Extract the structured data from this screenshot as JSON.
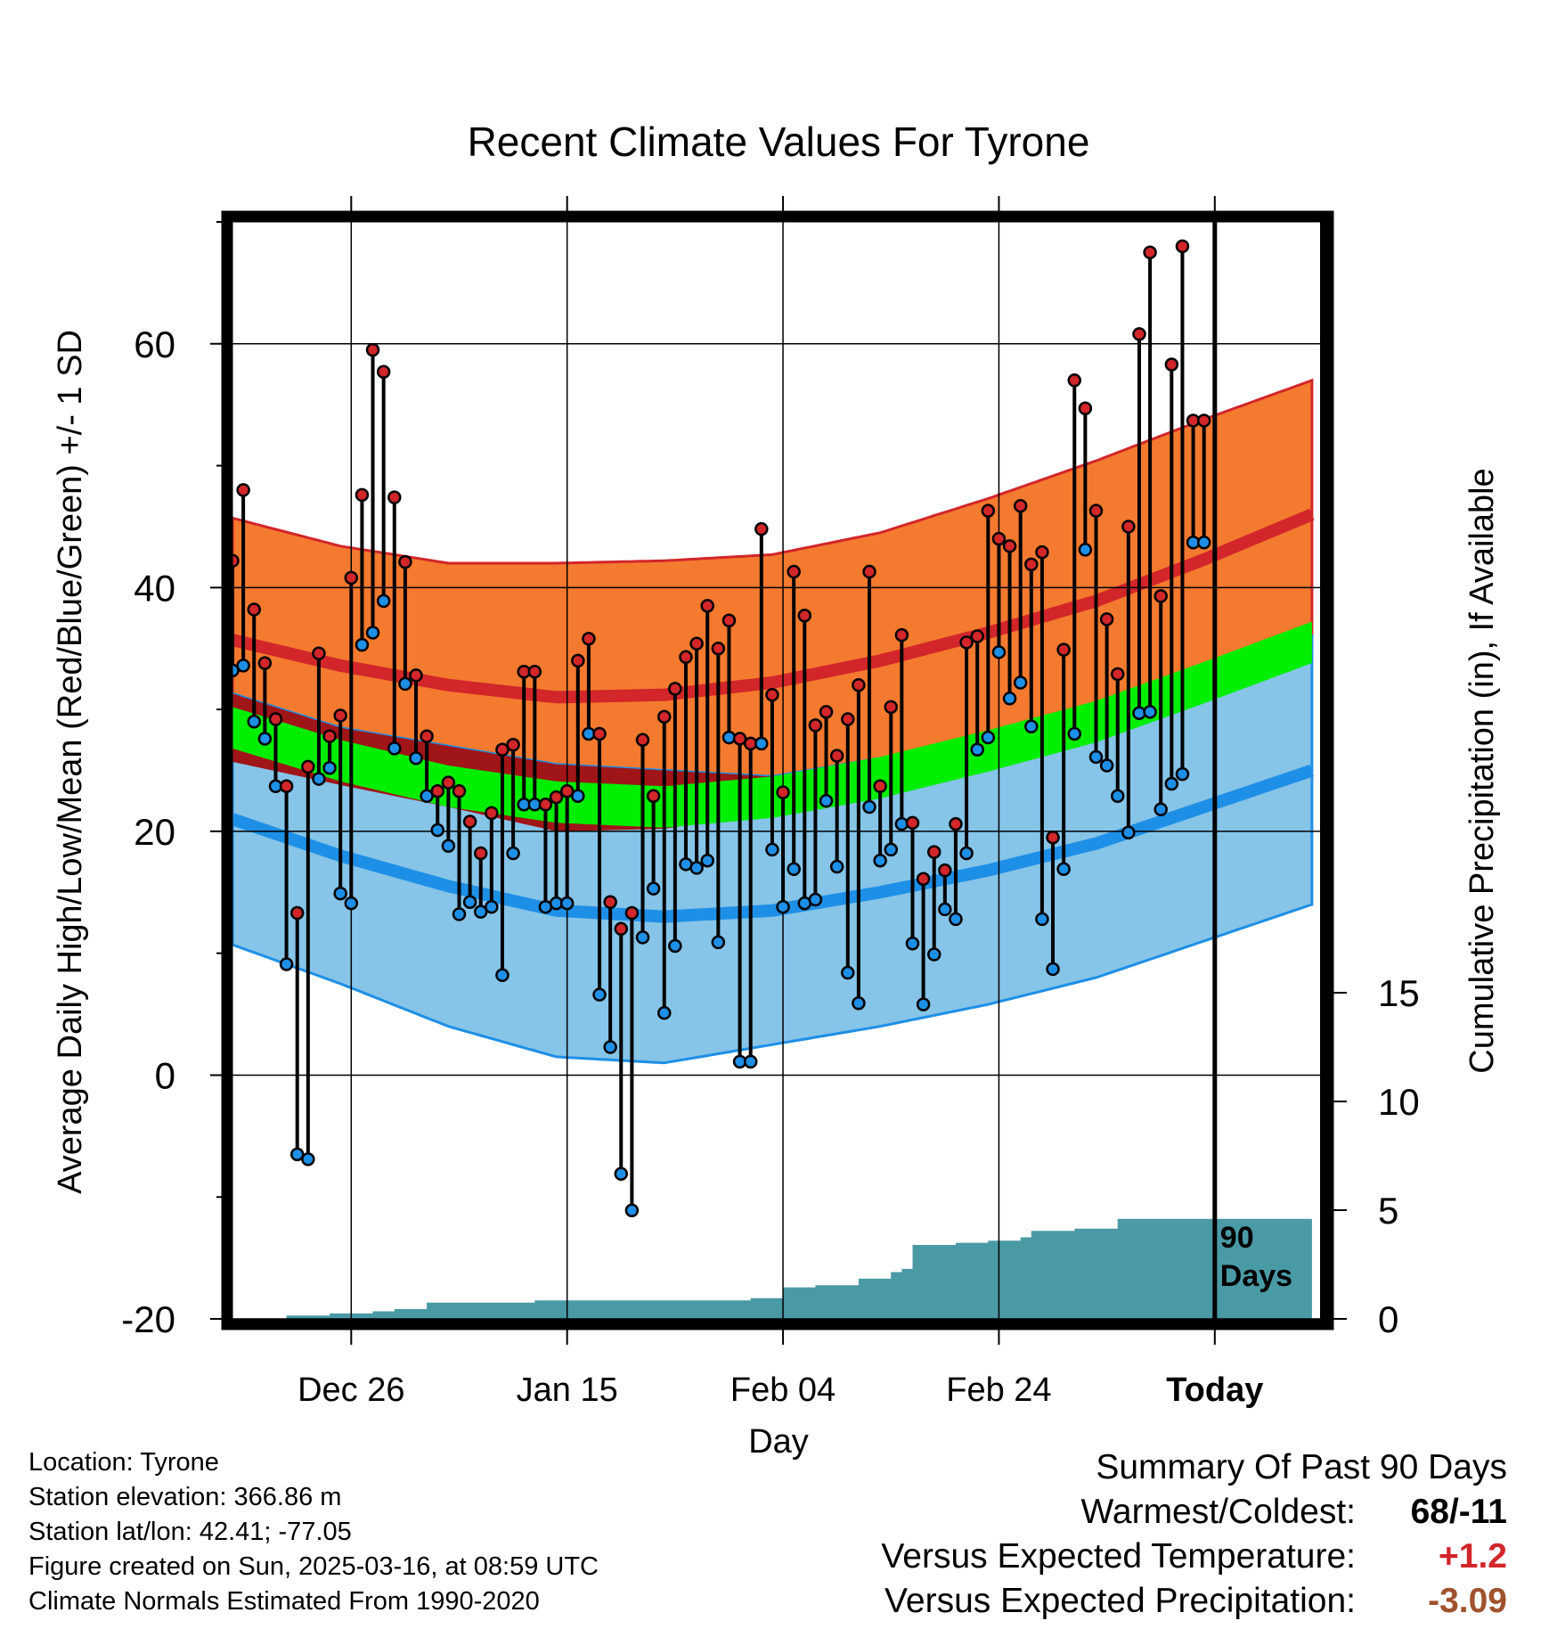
{
  "chart_data": {
    "type": "line",
    "title": "Recent Climate Values For Tyrone",
    "xlabel": "Day",
    "ylabel": "Average Daily High/Low/Mean (Red/Blue/Green) +/- 1 SD",
    "y2label": "Cumulative Precipitation (in), If Available",
    "x_tick_labels": [
      "Dec 26",
      "Jan 15",
      "Feb 04",
      "Feb 24",
      "Today"
    ],
    "x_tick_days": [
      11,
      31,
      51,
      71,
      91
    ],
    "xlim": [
      0,
      101
    ],
    "ylim": [
      -20,
      70
    ],
    "y_ticks": [
      -20,
      0,
      20,
      40,
      60
    ],
    "y2_ticks": [
      0,
      5,
      10,
      15
    ],
    "y2lim": [
      0,
      20
    ],
    "grid": true,
    "today_day": 91,
    "today_label": [
      "90",
      "Days"
    ],
    "colors": {
      "high_band": "#f47a2f",
      "high_mean": "#d2262a",
      "low_band": "#86c4e8",
      "low_mean": "#1e8fe6",
      "mean_band": "#00ee00",
      "overlap": "#a01518",
      "precip": "#4a9aa6",
      "high_dot": "#d2262a",
      "low_dot": "#1e8fe6"
    },
    "normals": {
      "days": [
        0,
        10,
        20,
        30,
        40,
        50,
        60,
        70,
        80,
        90,
        100
      ],
      "normal_high": [
        35.7,
        33.6,
        32.0,
        31.0,
        31.2,
        32.2,
        34.0,
        36.3,
        38.9,
        42.3,
        46.0
      ],
      "normal_high_sd": [
        10.0,
        9.8,
        10.0,
        11.0,
        11.0,
        10.5,
        10.5,
        11.0,
        11.5,
        11.5,
        11.0
      ],
      "normal_low": [
        21.0,
        18.0,
        15.5,
        13.5,
        13.0,
        13.5,
        15.0,
        16.8,
        19.0,
        22.0,
        25.0
      ],
      "normal_low_sd": [
        10.3,
        10.5,
        11.5,
        12.0,
        12.0,
        11.0,
        11.0,
        11.0,
        11.0,
        11.0,
        11.0
      ],
      "normal_mean": [
        28.5,
        25.8,
        23.7,
        22.4,
        22.0,
        22.8,
        24.4,
        26.6,
        29.0,
        32.2,
        35.5
      ],
      "mean_band_width": 1.7
    },
    "series": [
      {
        "name": "High",
        "days": [
          0,
          1,
          2,
          3,
          4,
          5,
          6,
          7,
          8,
          9,
          10,
          11,
          12,
          13,
          14,
          15,
          16,
          17,
          18,
          19,
          20,
          21,
          22,
          23,
          24,
          25,
          26,
          27,
          28,
          29,
          30,
          31,
          32,
          33,
          34,
          35,
          36,
          37,
          38,
          39,
          40,
          41,
          42,
          43,
          44,
          45,
          46,
          47,
          48,
          49,
          50,
          51,
          52,
          53,
          54,
          55,
          56,
          57,
          58,
          59,
          60,
          61,
          62,
          63,
          64,
          65,
          66,
          67,
          68,
          69,
          70,
          71,
          72,
          73,
          74,
          75,
          76,
          77,
          78,
          79,
          80,
          81,
          82,
          83,
          84,
          85,
          86,
          87,
          88,
          89,
          90
        ],
        "values": [
          42.2,
          48.0,
          38.2,
          33.8,
          29.2,
          23.7,
          13.3,
          25.3,
          34.6,
          27.8,
          29.5,
          40.8,
          47.6,
          59.5,
          57.7,
          47.4,
          42.1,
          32.8,
          27.8,
          23.3,
          24.0,
          23.3,
          20.8,
          18.2,
          21.5,
          26.7,
          27.1,
          33.1,
          33.1,
          22.2,
          22.8,
          23.3,
          34.0,
          35.8,
          28.0,
          14.2,
          12.0,
          13.3,
          27.5,
          22.9,
          29.4,
          31.7,
          34.3,
          35.4,
          38.5,
          35.0,
          37.3,
          27.6,
          27.2,
          44.8,
          31.2,
          23.2,
          41.3,
          37.7,
          28.7,
          29.8,
          26.2,
          29.2,
          32.0,
          41.3,
          23.7,
          30.2,
          36.1,
          20.7,
          16.1,
          18.3,
          16.8,
          20.6,
          35.5,
          36.0,
          46.3,
          44.0,
          43.4,
          46.7,
          41.9,
          42.9,
          19.5,
          34.9,
          57.0,
          54.7,
          46.3,
          37.4,
          32.9,
          45.0,
          60.8,
          67.5,
          39.3,
          58.3,
          68.0,
          53.7,
          53.7
        ]
      },
      {
        "name": "Low",
        "days": [
          0,
          1,
          2,
          3,
          4,
          5,
          6,
          7,
          8,
          9,
          10,
          11,
          12,
          13,
          14,
          15,
          16,
          17,
          18,
          19,
          20,
          21,
          22,
          23,
          24,
          25,
          26,
          27,
          28,
          29,
          30,
          31,
          32,
          33,
          34,
          35,
          36,
          37,
          38,
          39,
          40,
          41,
          42,
          43,
          44,
          45,
          46,
          47,
          48,
          49,
          50,
          51,
          52,
          53,
          54,
          55,
          56,
          57,
          58,
          59,
          60,
          61,
          62,
          63,
          64,
          65,
          66,
          67,
          68,
          69,
          70,
          71,
          72,
          73,
          74,
          75,
          76,
          77,
          78,
          79,
          80,
          81,
          82,
          83,
          84,
          85,
          86,
          87,
          88,
          89,
          90
        ],
        "values": [
          33.2,
          33.6,
          29.0,
          27.6,
          23.7,
          9.1,
          -6.5,
          -6.9,
          24.3,
          25.2,
          14.9,
          14.1,
          35.3,
          36.3,
          38.9,
          26.8,
          32.1,
          26.0,
          22.9,
          20.1,
          18.8,
          13.2,
          14.2,
          13.4,
          13.8,
          8.2,
          18.2,
          22.2,
          22.2,
          13.8,
          14.1,
          14.1,
          22.9,
          28.0,
          6.6,
          2.3,
          -8.1,
          -11.1,
          11.3,
          15.3,
          5.1,
          10.6,
          17.3,
          17.0,
          17.6,
          10.9,
          27.7,
          1.1,
          1.1,
          27.2,
          18.5,
          13.8,
          16.9,
          14.1,
          14.4,
          22.5,
          17.1,
          8.4,
          5.9,
          22.0,
          17.6,
          18.5,
          20.6,
          10.8,
          5.8,
          9.9,
          13.6,
          12.8,
          18.2,
          26.7,
          27.7,
          34.7,
          30.9,
          32.2,
          28.6,
          12.8,
          8.7,
          16.9,
          28.0,
          43.1,
          26.1,
          25.4,
          22.9,
          19.9,
          29.7,
          29.8,
          21.8,
          23.9,
          24.7,
          43.7,
          43.7
        ]
      }
    ],
    "precip": {
      "days": [
        0,
        5,
        9,
        13,
        15,
        18,
        28,
        48,
        51,
        54,
        58,
        61,
        62,
        63,
        67,
        70,
        73,
        74,
        78,
        82,
        86,
        90,
        100
      ],
      "values": [
        0,
        0.15,
        0.25,
        0.35,
        0.45,
        0.75,
        0.85,
        0.95,
        1.45,
        1.55,
        1.85,
        2.15,
        2.3,
        3.4,
        3.5,
        3.6,
        3.75,
        4.05,
        4.15,
        4.6,
        4.6,
        4.6,
        4.6
      ]
    }
  },
  "footer": {
    "lines": [
      "Location: Tyrone",
      "Station elevation: 366.86 m",
      "Station lat/lon: 42.41; -77.05",
      "Figure created on Sun, 2025-03-16, at 08:59 UTC",
      "Climate Normals Estimated From 1990-2020"
    ]
  },
  "summary": {
    "title": "Summary Of Past 90 Days",
    "rows": [
      {
        "label": "Warmest/Coldest:",
        "value": "68/-11",
        "color": "#000000"
      },
      {
        "label": "Versus Expected Temperature:",
        "value": "+1.2",
        "color": "#d2262a"
      },
      {
        "label": "Versus Expected Precipitation:",
        "value": "-3.09",
        "color": "#a0522d"
      }
    ]
  }
}
